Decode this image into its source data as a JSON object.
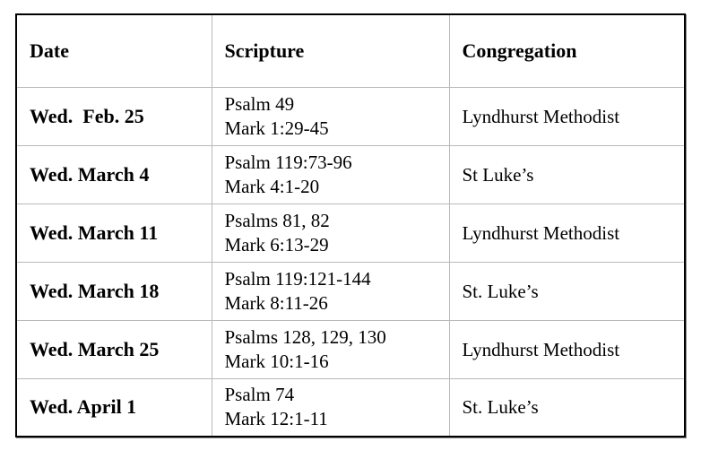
{
  "table": {
    "headers": {
      "date": "Date",
      "scripture": "Scripture",
      "congregation": "Congregation"
    },
    "rows": [
      {
        "date": "Wed.  Feb. 25",
        "scripture_lines": [
          "Psalm 49",
          "Mark 1:29-45"
        ],
        "congregation": "Lyndhurst Methodist"
      },
      {
        "date": "Wed. March 4",
        "scripture_lines": [
          "Psalm 119:73-96",
          "Mark 4:1-20"
        ],
        "congregation": "St Luke’s"
      },
      {
        "date": "Wed. March 11",
        "scripture_lines": [
          "Psalms 81, 82",
          "Mark 6:13-29"
        ],
        "congregation": "Lyndhurst Methodist"
      },
      {
        "date": "Wed. March 18",
        "scripture_lines": [
          "Psalm 119:121-144",
          "Mark 8:11-26"
        ],
        "congregation": "St. Luke’s"
      },
      {
        "date": "Wed. March 25",
        "scripture_lines": [
          "Psalms 128, 129, 130",
          "Mark 10:1-16"
        ],
        "congregation": "Lyndhurst Methodist"
      },
      {
        "date": "Wed. April 1",
        "scripture_lines": [
          "Psalm 74",
          "Mark 12:1-11"
        ],
        "congregation": "St. Luke’s"
      }
    ],
    "colors": {
      "background": "#ffffff",
      "text": "#000000",
      "border_outer": "#000000",
      "border_inner": "#b9b9b9"
    }
  }
}
